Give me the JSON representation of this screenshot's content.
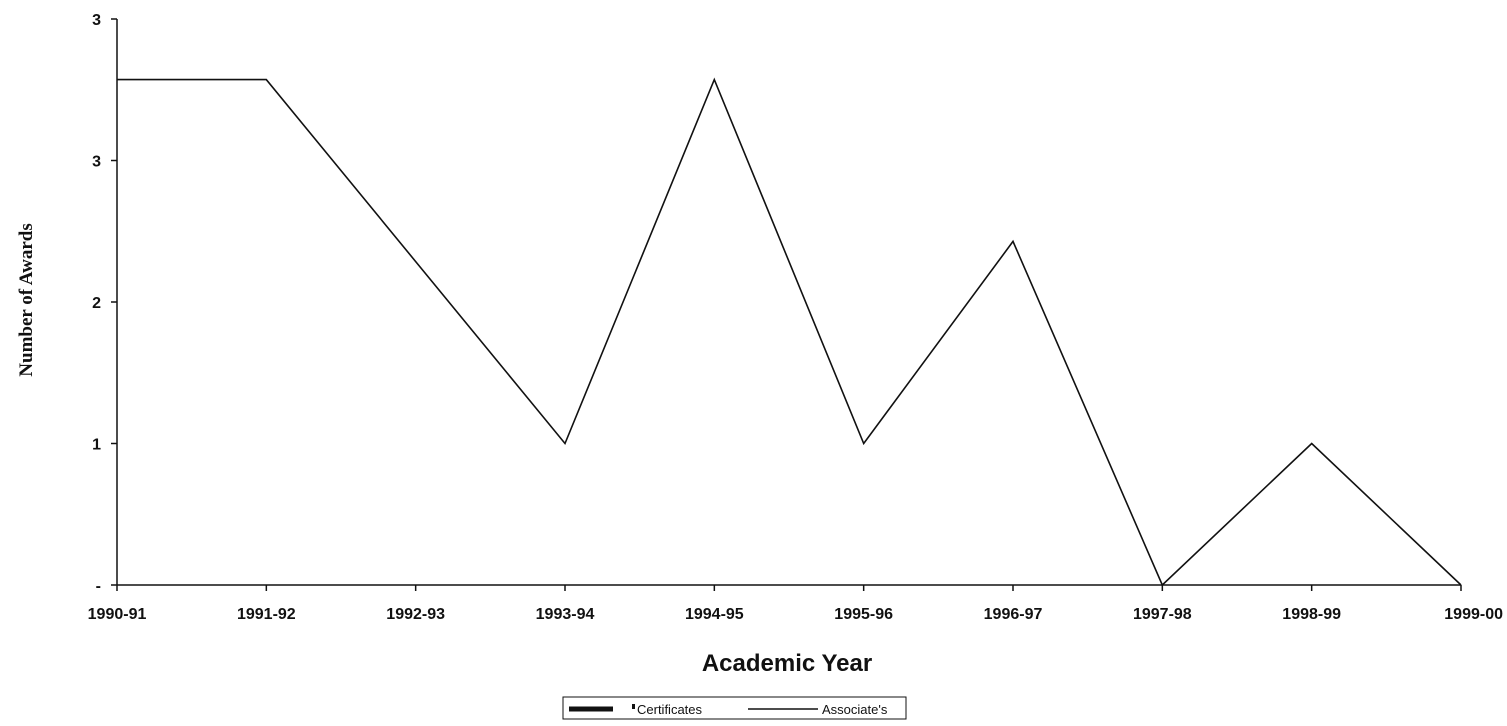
{
  "chart_data": {
    "type": "line",
    "categories": [
      "1990-91",
      "1991-92",
      "1992-93",
      "1993-94",
      "1994-95",
      "1995-96",
      "1996-97",
      "1997-98",
      "1998-99",
      "1999-00"
    ],
    "series": [
      {
        "name": "Certificates",
        "values": [
          null,
          null,
          null,
          null,
          null,
          null,
          null,
          null,
          null,
          null
        ]
      },
      {
        "name": "Associate's",
        "values": [
          3.5,
          3.5,
          2.6,
          1.7,
          3.5,
          1.7,
          2.7,
          1.0,
          1.7,
          1.0
        ]
      }
    ],
    "xlabel": "Academic Year",
    "ylabel": "Number of Awards",
    "ylim": [
      1,
      3.8
    ],
    "y_ticks": [
      {
        "value": 1.0,
        "label": "-"
      },
      {
        "value": 1.7,
        "label": "1"
      },
      {
        "value": 2.4,
        "label": "2"
      },
      {
        "value": 3.1,
        "label": "3"
      },
      {
        "value": 3.8,
        "label": "3"
      }
    ],
    "legend": {
      "position": "bottom-center",
      "items": [
        "Certificates",
        "Associate's"
      ]
    },
    "colors": {
      "line": "#111111",
      "axis": "#111111",
      "background": "#ffffff"
    }
  }
}
